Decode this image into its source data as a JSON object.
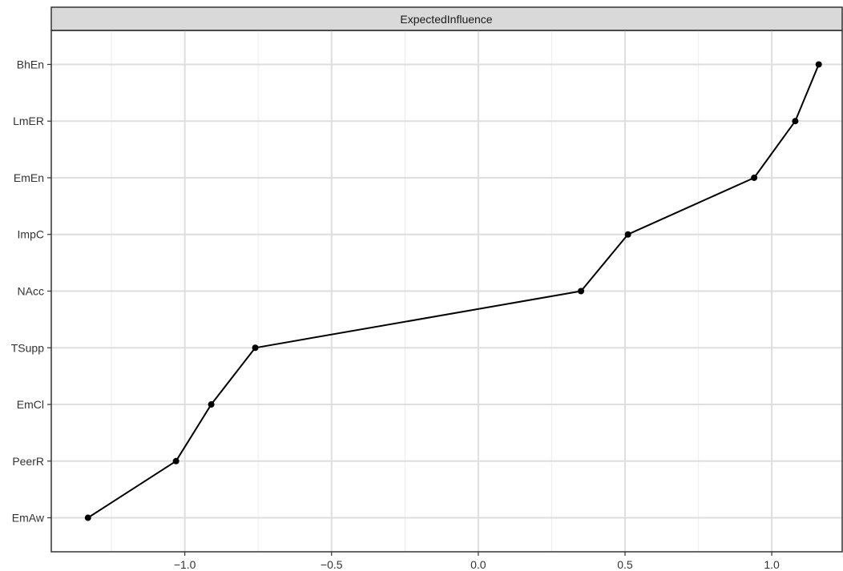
{
  "chart_data": {
    "type": "line",
    "facet_label": "ExpectedInfluence",
    "categories": [
      "EmAw",
      "PeerR",
      "EmCl",
      "TSupp",
      "NAcc",
      "ImpC",
      "EmEn",
      "LmER",
      "BhEn"
    ],
    "values": [
      -1.33,
      -1.03,
      -0.91,
      -0.76,
      0.35,
      0.51,
      0.94,
      1.08,
      1.16
    ],
    "x_ticks": [
      -1.0,
      -0.5,
      0.0,
      0.5,
      1.0
    ],
    "x_tick_labels": [
      "−1.0",
      "−0.5",
      "0.0",
      "0.5",
      "1.0"
    ],
    "xlim": [
      -1.455,
      1.24
    ],
    "xlabel": "",
    "ylabel": "",
    "grid": true,
    "legend": "none",
    "colors": {
      "line": "#000000",
      "point": "#000000",
      "grid_major": "#dedede",
      "grid_minor": "#efefef",
      "strip_fill": "#d9d9d9",
      "frame": "#333333"
    }
  }
}
